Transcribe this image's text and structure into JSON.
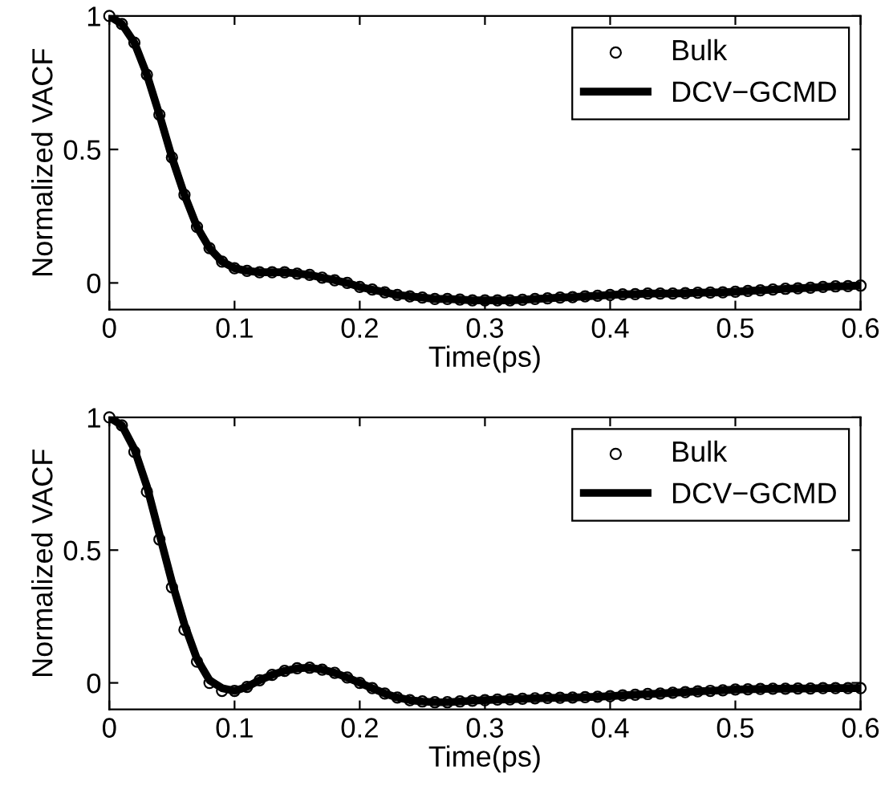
{
  "chart_data": [
    {
      "type": "line",
      "xlabel": "Time(ps)",
      "ylabel": "Normalized VACF",
      "x": [
        0,
        0.01,
        0.02,
        0.03,
        0.04,
        0.05,
        0.06,
        0.07,
        0.08,
        0.09,
        0.1,
        0.11,
        0.12,
        0.13,
        0.14,
        0.15,
        0.16,
        0.17,
        0.18,
        0.19,
        0.2,
        0.21,
        0.22,
        0.23,
        0.24,
        0.25,
        0.26,
        0.27,
        0.28,
        0.29,
        0.3,
        0.31,
        0.32,
        0.33,
        0.34,
        0.35,
        0.36,
        0.37,
        0.38,
        0.39,
        0.4,
        0.41,
        0.42,
        0.43,
        0.44,
        0.45,
        0.46,
        0.47,
        0.48,
        0.49,
        0.5,
        0.51,
        0.52,
        0.53,
        0.54,
        0.55,
        0.56,
        0.57,
        0.58,
        0.59,
        0.6
      ],
      "series": [
        {
          "name": "Bulk",
          "type": "scatter",
          "marker": "circle",
          "color": "#000000",
          "values": [
            1,
            0.97,
            0.9,
            0.78,
            0.63,
            0.47,
            0.33,
            0.21,
            0.13,
            0.08,
            0.055,
            0.045,
            0.04,
            0.04,
            0.04,
            0.035,
            0.03,
            0.02,
            0.01,
            0.0,
            -0.015,
            -0.025,
            -0.035,
            -0.045,
            -0.05,
            -0.055,
            -0.06,
            -0.06,
            -0.062,
            -0.065,
            -0.065,
            -0.065,
            -0.065,
            -0.063,
            -0.06,
            -0.058,
            -0.055,
            -0.053,
            -0.05,
            -0.048,
            -0.045,
            -0.043,
            -0.042,
            -0.04,
            -0.04,
            -0.04,
            -0.038,
            -0.037,
            -0.036,
            -0.035,
            -0.033,
            -0.03,
            -0.028,
            -0.025,
            -0.022,
            -0.02,
            -0.018,
            -0.015,
            -0.013,
            -0.012,
            -0.01
          ]
        },
        {
          "name": "DCV−GCMD",
          "line_style": "solid",
          "color": "#000000",
          "values": [
            1,
            0.97,
            0.9,
            0.78,
            0.63,
            0.47,
            0.33,
            0.21,
            0.13,
            0.08,
            0.055,
            0.045,
            0.04,
            0.04,
            0.04,
            0.035,
            0.03,
            0.02,
            0.01,
            0.0,
            -0.015,
            -0.025,
            -0.035,
            -0.045,
            -0.05,
            -0.055,
            -0.06,
            -0.06,
            -0.062,
            -0.065,
            -0.065,
            -0.065,
            -0.065,
            -0.063,
            -0.06,
            -0.058,
            -0.055,
            -0.053,
            -0.05,
            -0.048,
            -0.045,
            -0.043,
            -0.042,
            -0.04,
            -0.04,
            -0.04,
            -0.038,
            -0.037,
            -0.036,
            -0.035,
            -0.033,
            -0.03,
            -0.028,
            -0.025,
            -0.022,
            -0.02,
            -0.018,
            -0.015,
            -0.013,
            -0.012,
            -0.01
          ]
        }
      ],
      "xlim": [
        0,
        0.6
      ],
      "xticks": [
        0,
        0.1,
        0.2,
        0.3,
        0.4,
        0.5,
        0.6
      ],
      "ylim": [
        -0.1,
        1
      ],
      "yticks": [
        0,
        0.5,
        1
      ],
      "legend": "top right",
      "grid": false
    },
    {
      "type": "line",
      "xlabel": "Time(ps)",
      "ylabel": "Normalized VACF",
      "x": [
        0,
        0.01,
        0.02,
        0.03,
        0.04,
        0.05,
        0.06,
        0.07,
        0.08,
        0.09,
        0.1,
        0.11,
        0.12,
        0.13,
        0.14,
        0.15,
        0.16,
        0.17,
        0.18,
        0.19,
        0.2,
        0.21,
        0.22,
        0.23,
        0.24,
        0.25,
        0.26,
        0.27,
        0.28,
        0.29,
        0.3,
        0.31,
        0.32,
        0.33,
        0.34,
        0.35,
        0.36,
        0.37,
        0.38,
        0.39,
        0.4,
        0.41,
        0.42,
        0.43,
        0.44,
        0.45,
        0.46,
        0.47,
        0.48,
        0.49,
        0.5,
        0.51,
        0.52,
        0.53,
        0.54,
        0.55,
        0.56,
        0.57,
        0.58,
        0.59,
        0.6
      ],
      "series": [
        {
          "name": "Bulk",
          "type": "scatter",
          "marker": "circle",
          "color": "#000000",
          "values": [
            1,
            0.97,
            0.87,
            0.72,
            0.54,
            0.36,
            0.2,
            0.08,
            0.0,
            -0.03,
            -0.03,
            -0.015,
            0.01,
            0.03,
            0.045,
            0.055,
            0.057,
            0.05,
            0.038,
            0.02,
            0.0,
            -0.02,
            -0.04,
            -0.055,
            -0.065,
            -0.07,
            -0.073,
            -0.073,
            -0.07,
            -0.067,
            -0.065,
            -0.063,
            -0.062,
            -0.06,
            -0.058,
            -0.057,
            -0.056,
            -0.055,
            -0.054,
            -0.052,
            -0.05,
            -0.047,
            -0.045,
            -0.042,
            -0.04,
            -0.037,
            -0.035,
            -0.032,
            -0.03,
            -0.028,
            -0.025,
            -0.024,
            -0.023,
            -0.022,
            -0.022,
            -0.021,
            -0.021,
            -0.02,
            -0.02,
            -0.02,
            -0.02
          ]
        },
        {
          "name": "DCV−GCMD",
          "line_style": "solid",
          "color": "#000000",
          "values": [
            1,
            0.97,
            0.88,
            0.74,
            0.56,
            0.38,
            0.22,
            0.09,
            0.01,
            -0.02,
            -0.03,
            -0.015,
            0.01,
            0.03,
            0.045,
            0.055,
            0.057,
            0.05,
            0.038,
            0.02,
            0.0,
            -0.02,
            -0.04,
            -0.055,
            -0.065,
            -0.07,
            -0.073,
            -0.073,
            -0.07,
            -0.067,
            -0.065,
            -0.063,
            -0.062,
            -0.06,
            -0.058,
            -0.057,
            -0.056,
            -0.055,
            -0.054,
            -0.052,
            -0.05,
            -0.047,
            -0.045,
            -0.042,
            -0.04,
            -0.037,
            -0.035,
            -0.032,
            -0.03,
            -0.028,
            -0.025,
            -0.024,
            -0.023,
            -0.022,
            -0.022,
            -0.021,
            -0.021,
            -0.02,
            -0.02,
            -0.02,
            -0.02
          ]
        }
      ],
      "xlim": [
        0,
        0.6
      ],
      "xticks": [
        0,
        0.1,
        0.2,
        0.3,
        0.4,
        0.5,
        0.6
      ],
      "ylim": [
        -0.1,
        1
      ],
      "yticks": [
        0,
        0.5,
        1
      ],
      "legend": "top right",
      "grid": false
    }
  ]
}
